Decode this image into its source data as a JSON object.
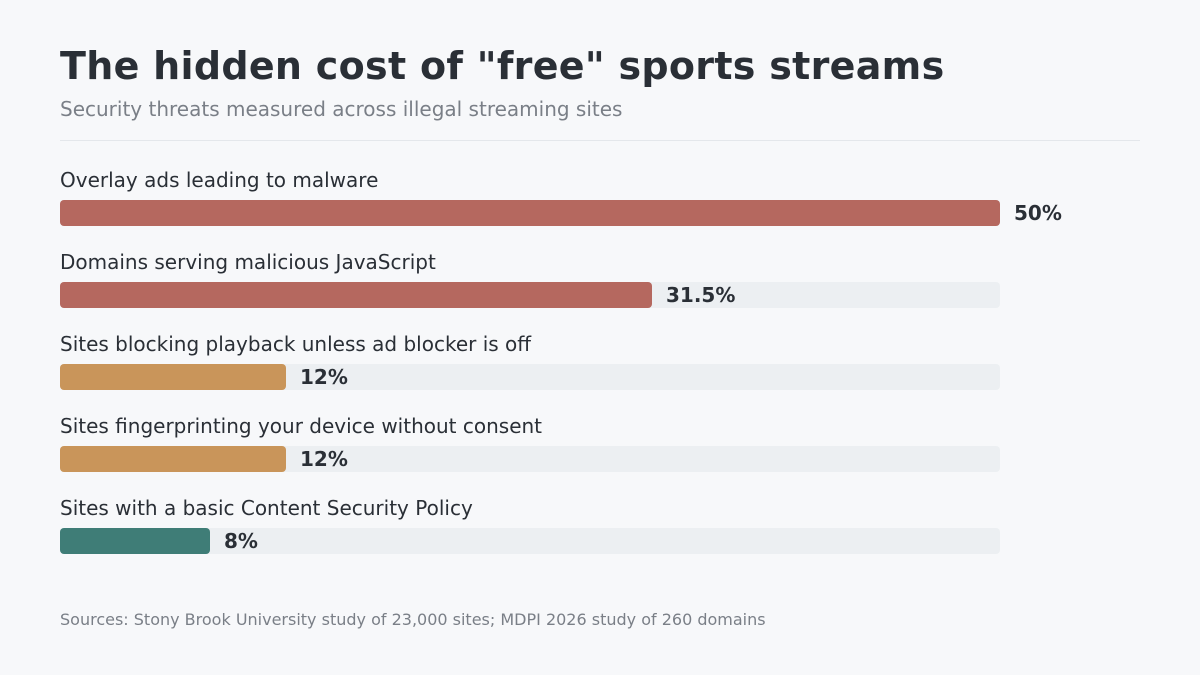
{
  "chart_data": {
    "type": "bar",
    "orientation": "horizontal",
    "title": "The hidden cost of \"free\" sports streams",
    "subtitle": "Security threats measured across illegal streaming sites",
    "categories": [
      "Overlay ads leading to malware",
      "Domains serving malicious JavaScript",
      "Sites blocking playback unless ad blocker is off",
      "Sites fingerprinting your device without consent",
      "Sites with a basic Content Security Policy"
    ],
    "values": [
      50,
      31.5,
      12,
      12,
      8
    ],
    "value_labels": [
      "50%",
      "31.5%",
      "12%",
      "12%",
      "8%"
    ],
    "bar_colors": [
      "#b5685f",
      "#b5685f",
      "#c9955a",
      "#c9955a",
      "#3f7d77"
    ],
    "track_color": "#eceff2",
    "xlim": [
      0,
      50
    ],
    "grid": false,
    "legend": "none"
  },
  "footnote": "Sources: Stony Brook University study of 23,000 sites; MDPI 2026 study of 260 domains"
}
